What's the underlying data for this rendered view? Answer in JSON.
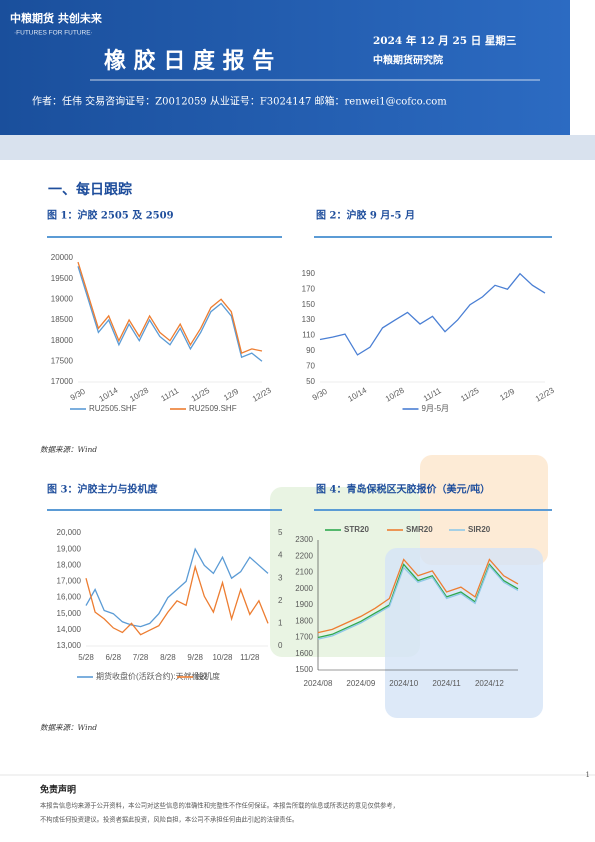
{
  "header": {
    "logo": "中粮期货 共创未来",
    "slogan": "·FUTURES FOR FUTURE·",
    "title": "橡 胶 日 度 报 告",
    "date": "2024 年 12 月 25 日 星期三",
    "institute": "中粮期货研究院",
    "author_line": "作者：任伟   交易咨询证号：Z0012059   从业证号：F3024147   邮箱：renwei1@cofco.com"
  },
  "section": "一、每日跟踪",
  "captions": [
    "图 1：沪胶 2505 及 2509",
    "图 2：沪胶 9 月-5 月",
    "图 3：沪胶主力与投机度",
    "图 4：青岛保税区天胶报价（美元/吨）"
  ],
  "sources": [
    "数据来源：Wind",
    "数据来源：Wind"
  ],
  "disclaimer": {
    "title": "免责声明",
    "lines": [
      "本报告信息均来源于公开资料，本公司对这些信息的准确性和完整性不作任何保证。本报告所载的信息或所表达的意见仅供参考，",
      "不构成任何投资建议。投资者据此投资，风险自担，本公司不承担任何由此引起的法律责任。"
    ]
  },
  "page_number": "1",
  "chart_data": [
    {
      "type": "line",
      "categories": [
        "9/30",
        null,
        null,
        "10/14",
        null,
        null,
        "10/28",
        null,
        null,
        "11/11",
        null,
        null,
        "11/25",
        null,
        null,
        "12/9",
        null,
        null,
        "12/23"
      ],
      "series": [
        {
          "name": "RU2505.SHF",
          "color": "#5b9bd5",
          "values": [
            19800,
            19000,
            18200,
            18500,
            17900,
            18400,
            18000,
            18500,
            18100,
            17900,
            18300,
            17800,
            18200,
            18700,
            18900,
            18600,
            17600,
            17700,
            17500
          ]
        },
        {
          "name": "RU2509.SHF",
          "color": "#ed7d31",
          "values": [
            19900,
            19100,
            18300,
            18600,
            18000,
            18500,
            18100,
            18600,
            18200,
            18000,
            18400,
            17900,
            18300,
            18800,
            19000,
            18700,
            17700,
            17800,
            17750
          ]
        }
      ],
      "ylim": [
        17000,
        20000
      ],
      "yticks": [
        17000,
        17500,
        18000,
        18500,
        19000,
        19500,
        20000
      ],
      "grid": false,
      "legend": "bottom"
    },
    {
      "type": "line",
      "categories": [
        "9/30",
        null,
        null,
        "10/14",
        null,
        null,
        "10/28",
        null,
        null,
        "11/11",
        null,
        null,
        "11/25",
        null,
        null,
        "12/9",
        null,
        null,
        "12/23"
      ],
      "series": [
        {
          "name": "9月-5月",
          "color": "#4a7fd4",
          "values": [
            105,
            108,
            112,
            85,
            95,
            120,
            130,
            140,
            125,
            135,
            115,
            130,
            150,
            160,
            175,
            170,
            190,
            175,
            165
          ]
        }
      ],
      "ylim": [
        50,
        200
      ],
      "yticks": [
        50,
        70,
        90,
        110,
        130,
        150,
        170,
        190
      ],
      "grid": false,
      "legend": "bottom"
    },
    {
      "type": "line",
      "categories": [
        "5/28",
        null,
        null,
        "6/28",
        null,
        null,
        "7/28",
        null,
        null,
        "8/28",
        null,
        null,
        "9/28",
        null,
        null,
        "10/28",
        null,
        null,
        "11/28",
        null,
        null
      ],
      "series": [
        {
          "name": "期货收盘价(活跃合约):天然橡胶",
          "color": "#5b9bd5",
          "values": [
            15500,
            16500,
            15200,
            15000,
            14500,
            14300,
            14200,
            14400,
            15000,
            16000,
            16500,
            17000,
            19000,
            18000,
            17500,
            18500,
            17200,
            17600,
            18500,
            18000,
            17500
          ]
        },
        {
          "name": "投机度",
          "color": "#ed7d31",
          "axis": "y2",
          "values": [
            3.0,
            1.5,
            1.2,
            0.8,
            0.6,
            1.0,
            0.5,
            0.7,
            0.9,
            1.5,
            2.0,
            1.8,
            3.5,
            2.2,
            1.5,
            2.8,
            1.2,
            2.5,
            1.4,
            2.0,
            1.0
          ]
        }
      ],
      "ylim": [
        13000,
        20000
      ],
      "yticks": [
        {
          "value": 13000,
          "label": "13,000"
        },
        {
          "value": 14000,
          "label": "14,000"
        },
        {
          "value": 15000,
          "label": "15,000"
        },
        {
          "value": 16000,
          "label": "16,000"
        },
        {
          "value": 17000,
          "label": "17,000"
        },
        {
          "value": 18000,
          "label": "18,000"
        },
        {
          "value": 19000,
          "label": "19,000"
        },
        {
          "value": 20000,
          "label": "20,000"
        }
      ],
      "y2lim": [
        0,
        5
      ],
      "y2ticks": [
        0,
        1,
        2,
        3,
        4,
        5
      ],
      "grid": false,
      "legend": "bottom"
    },
    {
      "type": "line",
      "categories": [
        "2024/08",
        null,
        null,
        "2024/09",
        null,
        null,
        "2024/10",
        null,
        null,
        "2024/11",
        null,
        null,
        "2024/12",
        null,
        null
      ],
      "series": [
        {
          "name": "STR20",
          "color": "#2ea84f",
          "values": [
            1700,
            1720,
            1760,
            1800,
            1850,
            1900,
            2150,
            2050,
            2080,
            1950,
            1980,
            1920,
            2150,
            2050,
            2000
          ]
        },
        {
          "name": "SMR20",
          "color": "#ed7d31",
          "values": [
            1730,
            1750,
            1790,
            1830,
            1880,
            1940,
            2180,
            2080,
            2110,
            1980,
            2010,
            1950,
            2180,
            2080,
            2030
          ]
        },
        {
          "name": "SIR20",
          "color": "#8fc8e8",
          "values": [
            1690,
            1710,
            1750,
            1790,
            1840,
            1890,
            2130,
            2040,
            2070,
            1940,
            1970,
            1910,
            2140,
            2040,
            1990
          ]
        }
      ],
      "ylim": [
        1500,
        2300
      ],
      "yticks": [
        1500,
        1600,
        1700,
        1800,
        1900,
        2000,
        2100,
        2200,
        2300
      ],
      "grid": false,
      "legend": "top"
    }
  ]
}
